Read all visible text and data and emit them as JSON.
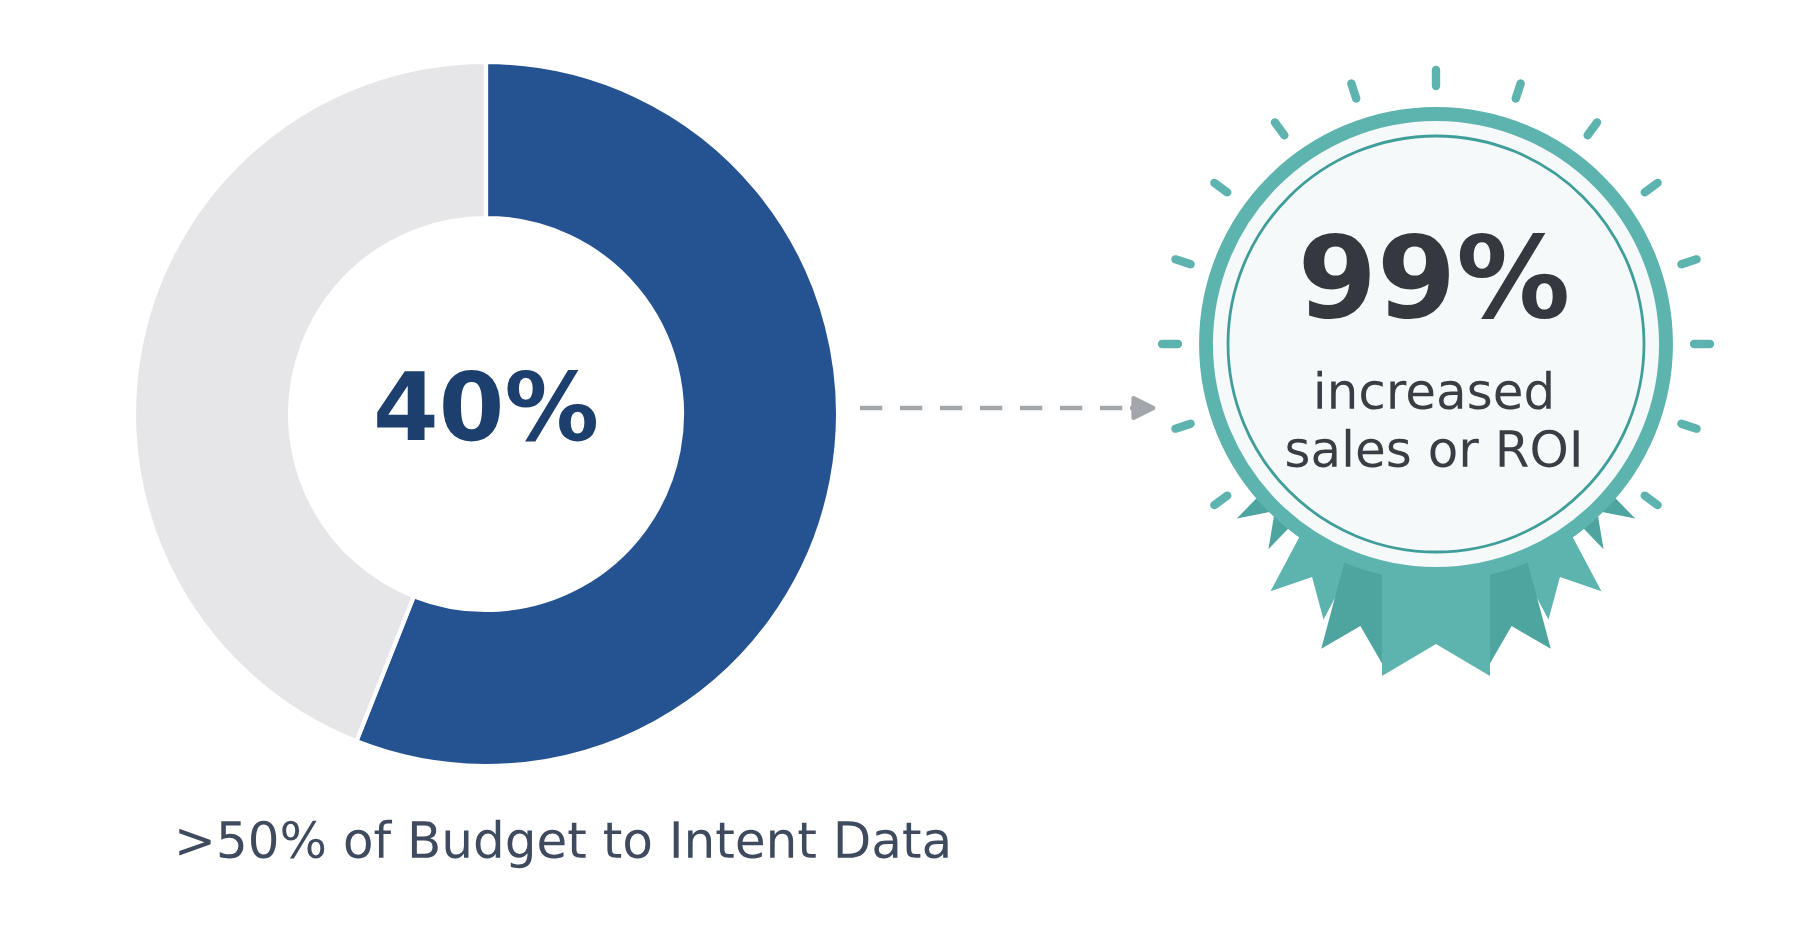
{
  "chart_data": {
    "type": "donut",
    "categories": [
      null,
      null
    ],
    "values": [
      56,
      44
    ],
    "colors": [
      "#255391",
      "#e6e6e8"
    ],
    "annotations": [
      "40%",
      "99%",
      "increased\nsales or ROI",
      ">50% of Budget to Intent Data"
    ]
  }
}
